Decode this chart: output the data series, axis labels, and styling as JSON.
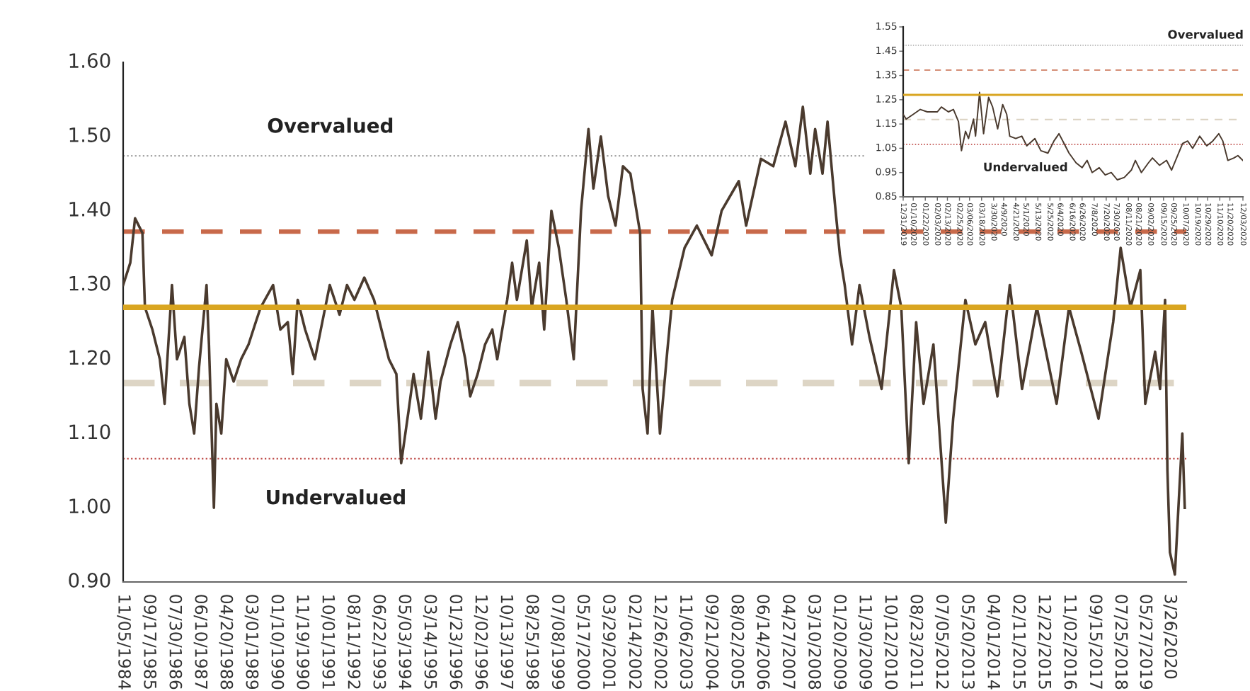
{
  "chart_data": [
    {
      "type": "line",
      "xlim": [
        "1984-11-05",
        "2020-10-20"
      ],
      "ylim": [
        0.9,
        1.6
      ],
      "yticks": [
        {
          "value": 0.9,
          "label": "0.90"
        },
        {
          "value": 1.0,
          "label": "1.00"
        },
        {
          "value": 1.1,
          "label": "1.10"
        },
        {
          "value": 1.2,
          "label": "1.20"
        },
        {
          "value": 1.3,
          "label": "1.30"
        },
        {
          "value": 1.4,
          "label": "1.40"
        },
        {
          "value": 1.5,
          "label": "1.50"
        },
        {
          "value": 1.6,
          "label": "1.60"
        }
      ],
      "xticks": [
        {
          "value": "1984-11-05",
          "label": "11/05/1984"
        },
        {
          "value": "1985-09-17",
          "label": "09/17/1985"
        },
        {
          "value": "1986-07-30",
          "label": "07/30/1986"
        },
        {
          "value": "1987-06-10",
          "label": "06/10/1987"
        },
        {
          "value": "1988-04-20",
          "label": "04/20/1988"
        },
        {
          "value": "1989-03-01",
          "label": "03/01/1989"
        },
        {
          "value": "1990-01-10",
          "label": "01/10/1990"
        },
        {
          "value": "1990-11-19",
          "label": "11/19/1990"
        },
        {
          "value": "1991-10-01",
          "label": "10/01/1991"
        },
        {
          "value": "1992-08-11",
          "label": "08/11/1992"
        },
        {
          "value": "1993-06-22",
          "label": "06/22/1993"
        },
        {
          "value": "1994-05-03",
          "label": "05/03/1994"
        },
        {
          "value": "1995-03-14",
          "label": "03/14/1995"
        },
        {
          "value": "1996-01-23",
          "label": "01/23/1996"
        },
        {
          "value": "1996-12-02",
          "label": "12/02/1996"
        },
        {
          "value": "1997-10-13",
          "label": "10/13/1997"
        },
        {
          "value": "1998-08-25",
          "label": "08/25/1998"
        },
        {
          "value": "1999-07-08",
          "label": "07/08/1999"
        },
        {
          "value": "2000-05-17",
          "label": "05/17/2000"
        },
        {
          "value": "2001-03-29",
          "label": "03/29/2001"
        },
        {
          "value": "2002-02-14",
          "label": "02/14/2002"
        },
        {
          "value": "2002-12-26",
          "label": "12/26/2002"
        },
        {
          "value": "2003-11-06",
          "label": "11/06/2003"
        },
        {
          "value": "2004-09-21",
          "label": "09/21/2004"
        },
        {
          "value": "2005-08-02",
          "label": "08/02/2005"
        },
        {
          "value": "2006-06-14",
          "label": "06/14/2006"
        },
        {
          "value": "2007-04-27",
          "label": "04/27/2007"
        },
        {
          "value": "2008-03-10",
          "label": "03/10/2008"
        },
        {
          "value": "2009-01-20",
          "label": "01/20/2009"
        },
        {
          "value": "2009-11-30",
          "label": "11/30/2009"
        },
        {
          "value": "2010-10-12",
          "label": "10/12/2010"
        },
        {
          "value": "2011-08-23",
          "label": "08/23/2011"
        },
        {
          "value": "2012-07-05",
          "label": "07/05/2012"
        },
        {
          "value": "2013-05-20",
          "label": "05/20/2013"
        },
        {
          "value": "2014-04-01",
          "label": "04/01/2014"
        },
        {
          "value": "2015-02-11",
          "label": "02/11/2015"
        },
        {
          "value": "2015-12-22",
          "label": "12/22/2015"
        },
        {
          "value": "2016-11-02",
          "label": "11/02/2016"
        },
        {
          "value": "2017-09-15",
          "label": "09/15/2017"
        },
        {
          "value": "2018-07-25",
          "label": "07/25/2018"
        },
        {
          "value": "2019-05-27",
          "label": "05/27/2019"
        },
        {
          "value": "2020-03-26",
          "label": "3/26/2020"
        }
      ],
      "x": [
        "1984-11-05",
        "1985-02",
        "1985-04",
        "1985-07",
        "1985-08",
        "1985-11",
        "1986-02",
        "1986-04",
        "1986-07",
        "1986-09",
        "1986-12",
        "1987-02",
        "1987-04",
        "1987-06",
        "1987-09",
        "1987-10",
        "1987-12",
        "1988-01",
        "1988-03",
        "1988-05",
        "1988-08",
        "1988-11",
        "1989-02",
        "1989-05",
        "1989-07",
        "1989-12",
        "1990-03",
        "1990-06",
        "1990-08",
        "1990-10",
        "1991-01",
        "1991-05",
        "1991-08",
        "1991-11",
        "1992-03",
        "1992-06",
        "1992-09",
        "1993-01",
        "1993-05",
        "1993-08",
        "1993-11",
        "1994-02",
        "1994-04",
        "1994-07",
        "1994-09",
        "1994-12",
        "1995-03",
        "1995-06",
        "1995-08",
        "1995-12",
        "1996-03",
        "1996-06",
        "1996-08",
        "1996-11",
        "1997-02",
        "1997-05",
        "1997-07",
        "1997-11",
        "1998-01",
        "1998-03",
        "1998-07",
        "1998-09",
        "1998-12",
        "1999-02",
        "1999-05",
        "1999-08",
        "1999-11",
        "2000-02",
        "2000-05",
        "2000-08",
        "2000-10",
        "2001-01",
        "2001-04",
        "2001-07",
        "2001-10",
        "2002-01",
        "2002-05",
        "2002-06",
        "2002-08",
        "2002-10",
        "2003-01",
        "2003-04",
        "2003-06",
        "2003-11",
        "2004-04",
        "2004-10",
        "2005-02",
        "2005-09",
        "2005-12",
        "2006-06",
        "2006-11",
        "2007-04",
        "2007-08",
        "2007-11",
        "2008-02",
        "2008-04",
        "2008-07",
        "2008-09",
        "2008-12",
        "2009-02",
        "2009-04",
        "2009-07",
        "2009-10",
        "2010-02",
        "2010-07",
        "2010-12",
        "2011-03",
        "2011-06",
        "2011-09",
        "2011-12",
        "2012-04",
        "2012-09",
        "2012-12",
        "2013-05",
        "2013-09",
        "2014-01",
        "2014-06",
        "2014-11",
        "2015-04",
        "2015-10",
        "2016-06",
        "2016-11",
        "2017-04",
        "2017-11",
        "2018-05",
        "2018-08",
        "2018-12",
        "2019-04",
        "2019-06",
        "2019-10",
        "2019-12",
        "2020-02",
        "2020-03",
        "2020-04",
        "2020-06",
        "2020-09",
        "2020-10"
      ],
      "series": [
        {
          "color": "#4a3a2e",
          "values": [
            1.3,
            1.33,
            1.39,
            1.37,
            1.27,
            1.24,
            1.2,
            1.14,
            1.3,
            1.2,
            1.23,
            1.14,
            1.1,
            1.19,
            1.3,
            1.22,
            1.0,
            1.14,
            1.1,
            1.2,
            1.17,
            1.2,
            1.22,
            1.25,
            1.27,
            1.3,
            1.24,
            1.25,
            1.18,
            1.28,
            1.24,
            1.2,
            1.25,
            1.3,
            1.26,
            1.3,
            1.28,
            1.31,
            1.28,
            1.24,
            1.2,
            1.18,
            1.06,
            1.13,
            1.18,
            1.12,
            1.21,
            1.12,
            1.17,
            1.22,
            1.25,
            1.2,
            1.15,
            1.18,
            1.22,
            1.24,
            1.2,
            1.28,
            1.33,
            1.28,
            1.36,
            1.27,
            1.33,
            1.24,
            1.4,
            1.35,
            1.28,
            1.2,
            1.4,
            1.51,
            1.43,
            1.5,
            1.42,
            1.38,
            1.46,
            1.45,
            1.37,
            1.16,
            1.1,
            1.27,
            1.1,
            1.21,
            1.28,
            1.35,
            1.38,
            1.34,
            1.4,
            1.44,
            1.38,
            1.47,
            1.46,
            1.52,
            1.46,
            1.54,
            1.45,
            1.51,
            1.45,
            1.52,
            1.41,
            1.34,
            1.3,
            1.22,
            1.3,
            1.23,
            1.16,
            1.32,
            1.27,
            1.06,
            1.25,
            1.14,
            1.22,
            0.98,
            1.12,
            1.28,
            1.22,
            1.25,
            1.15,
            1.3,
            1.16,
            1.27,
            1.14,
            1.27,
            1.21,
            1.12,
            1.25,
            1.35,
            1.27,
            1.32,
            1.14,
            1.21,
            1.16,
            1.28,
            1.05,
            0.94,
            0.91,
            1.1,
            1.0
          ]
        }
      ],
      "ref_lines": [
        {
          "axis": "y",
          "value": 1.474,
          "color": "#a6a6a6",
          "line_style": "dotted"
        },
        {
          "axis": "y",
          "value": 1.372,
          "color": "#c8694a",
          "line_style": "dashed"
        },
        {
          "axis": "y",
          "value": 1.27,
          "color": "#d9a520",
          "line_style": "solid"
        },
        {
          "axis": "y",
          "value": 1.168,
          "color": "#ddd5c5",
          "line_style": "dashed"
        },
        {
          "axis": "y",
          "value": 1.066,
          "color": "#c0504d",
          "line_style": "dotted"
        }
      ],
      "annotations": [
        "Overvalued",
        "Undervalued"
      ]
    },
    {
      "type": "line",
      "xlim": [
        "2019-12-31",
        "2020-12-03"
      ],
      "ylim": [
        0.85,
        1.55
      ],
      "yticks": [
        {
          "value": 0.85,
          "label": "0.85"
        },
        0.95,
        1.05,
        1.15,
        1.25,
        1.35,
        1.45,
        1.55
      ],
      "xticks": [
        {
          "value": "2019-12-31",
          "label": "12/31/2019"
        },
        {
          "value": "2020-01-10",
          "label": "01/10/2020"
        },
        {
          "value": "2020-01-22",
          "label": "01/22/2020"
        },
        {
          "value": "2020-02-03",
          "label": "02/03/2020"
        },
        {
          "value": "2020-02-13",
          "label": "02/13/2020"
        },
        {
          "value": "2020-02-25",
          "label": "02/25/2020"
        },
        {
          "value": "2020-03-06",
          "label": "03/06/2020"
        },
        {
          "value": "2020-03-18",
          "label": "03/18/2020"
        },
        {
          "value": "2020-03-30",
          "label": "3/30/2020"
        },
        {
          "value": "2020-04-09",
          "label": "4/9/2020"
        },
        {
          "value": "2020-04-21",
          "label": "4/21/2020"
        },
        {
          "value": "2020-05-01",
          "label": "5/1/2020"
        },
        {
          "value": "2020-05-13",
          "label": "5/13/2020"
        },
        {
          "value": "2020-05-25",
          "label": "5/25/2020"
        },
        {
          "value": "2020-06-04",
          "label": "6/4/2020"
        },
        {
          "value": "2020-06-16",
          "label": "6/16/2020"
        },
        {
          "value": "2020-06-26",
          "label": "6/26/2020"
        },
        {
          "value": "2020-07-08",
          "label": "7/8/2020"
        },
        {
          "value": "2020-07-20",
          "label": "7/20/2020"
        },
        {
          "value": "2020-07-30",
          "label": "7/30/2020"
        },
        {
          "value": "2020-08-11",
          "label": "08/11/2020"
        },
        {
          "value": "2020-08-21",
          "label": "08/21/2020"
        },
        {
          "value": "2020-09-02",
          "label": "09/02/2020"
        },
        {
          "value": "2020-09-15",
          "label": "09/15/2020"
        },
        {
          "value": "2020-09-25",
          "label": "09/25/2020"
        },
        {
          "value": "2020-10-07",
          "label": "10/07/2020"
        },
        {
          "value": "2020-10-19",
          "label": "10/19/2020"
        },
        {
          "value": "2020-10-29",
          "label": "10/29/2020"
        },
        {
          "value": "2020-11-10",
          "label": "11/10/2020"
        },
        {
          "value": "2020-11-20",
          "label": "11/20/2020"
        },
        {
          "value": "2020-12-03",
          "label": "12/03/2020"
        }
      ],
      "x": [
        "2019-12-31",
        "2020-01-03",
        "2020-01-10",
        "2020-01-17",
        "2020-01-24",
        "2020-02-03",
        "2020-02-07",
        "2020-02-14",
        "2020-02-19",
        "2020-02-21",
        "2020-02-24",
        "2020-02-27",
        "2020-03-02",
        "2020-03-05",
        "2020-03-10",
        "2020-03-12",
        "2020-03-16",
        "2020-03-20",
        "2020-03-25",
        "2020-03-29",
        "2020-04-03",
        "2020-04-08",
        "2020-04-12",
        "2020-04-15",
        "2020-04-21",
        "2020-04-27",
        "2020-05-02",
        "2020-05-10",
        "2020-05-16",
        "2020-05-23",
        "2020-05-29",
        "2020-06-03",
        "2020-06-08",
        "2020-06-13",
        "2020-06-20",
        "2020-06-26",
        "2020-07-01",
        "2020-07-06",
        "2020-07-13",
        "2020-07-19",
        "2020-07-25",
        "2020-07-31",
        "2020-08-07",
        "2020-08-14",
        "2020-08-18",
        "2020-08-24",
        "2020-08-31",
        "2020-09-04",
        "2020-09-11",
        "2020-09-18",
        "2020-09-23",
        "2020-09-30",
        "2020-10-04",
        "2020-10-09",
        "2020-10-14",
        "2020-10-21",
        "2020-10-28",
        "2020-11-03",
        "2020-11-09",
        "2020-11-13",
        "2020-11-18",
        "2020-11-24",
        "2020-11-28",
        "2020-12-03"
      ],
      "series": [
        {
          "color": "#4a3a2e",
          "values": [
            1.19,
            1.17,
            1.19,
            1.21,
            1.2,
            1.2,
            1.22,
            1.2,
            1.21,
            1.19,
            1.16,
            1.04,
            1.12,
            1.09,
            1.17,
            1.1,
            1.28,
            1.11,
            1.26,
            1.22,
            1.13,
            1.23,
            1.19,
            1.1,
            1.09,
            1.1,
            1.06,
            1.09,
            1.04,
            1.03,
            1.08,
            1.11,
            1.07,
            1.03,
            0.99,
            0.97,
            1.0,
            0.95,
            0.97,
            0.94,
            0.95,
            0.92,
            0.93,
            0.96,
            1.0,
            0.95,
            0.99,
            1.01,
            0.98,
            1.0,
            0.96,
            1.03,
            1.07,
            1.08,
            1.05,
            1.1,
            1.06,
            1.08,
            1.11,
            1.08,
            1.0,
            1.01,
            1.02,
            1.0
          ]
        }
      ],
      "ref_lines": [
        {
          "axis": "y",
          "value": 1.474,
          "color": "#a6a6a6",
          "line_style": "dotted"
        },
        {
          "axis": "y",
          "value": 1.372,
          "color": "#c8694a",
          "line_style": "dashed"
        },
        {
          "axis": "y",
          "value": 1.27,
          "color": "#d9a520",
          "line_style": "solid"
        },
        {
          "axis": "y",
          "value": 1.168,
          "color": "#ddd5c5",
          "line_style": "dashed"
        },
        {
          "axis": "y",
          "value": 1.066,
          "color": "#c0504d",
          "line_style": "dotted"
        }
      ],
      "annotations": [
        "Overvalued",
        "Undervalued"
      ]
    }
  ]
}
